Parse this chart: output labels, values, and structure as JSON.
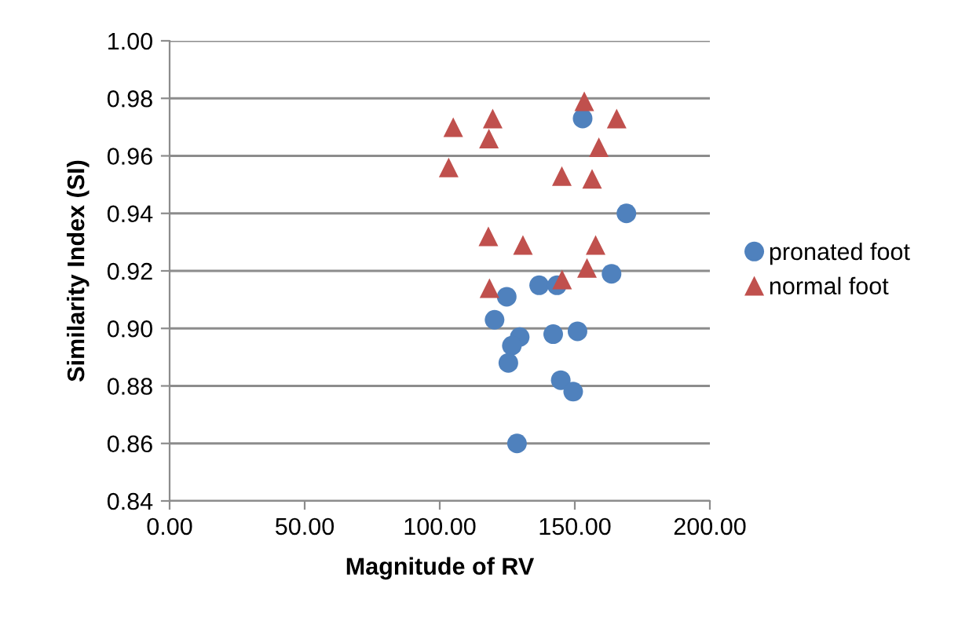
{
  "chart_data": {
    "type": "scatter",
    "xlabel": "Magnitude of RV",
    "ylabel": "Similarity Index (SI)",
    "xlim": [
      0,
      200
    ],
    "xticks": [
      {
        "value": 0,
        "label": "0.00"
      },
      {
        "value": 50,
        "label": "50.00"
      },
      {
        "value": 100,
        "label": "100.00"
      },
      {
        "value": 150,
        "label": "150.00"
      },
      {
        "value": 200,
        "label": "200.00"
      }
    ],
    "ylim": [
      0.84,
      1.0
    ],
    "yticks": [
      0.84,
      0.86,
      0.88,
      {
        "value": 0.9,
        "label": "0.90"
      },
      0.92,
      0.94,
      0.96,
      0.98,
      {
        "value": 1.0,
        "label": "1.00"
      }
    ],
    "grid": "y",
    "legend": "right",
    "series": [
      {
        "name": "pronated foot",
        "color": "#4f81bd",
        "marker": "circle",
        "x": [
          152.9,
          169.1,
          163.6,
          136.8,
          143.4,
          124.8,
          120.3,
          129.6,
          126.7,
          125.4,
          142.0,
          151.0,
          144.8,
          149.4,
          128.6
        ],
        "values": [
          0.973,
          0.94,
          0.919,
          0.915,
          0.915,
          0.911,
          0.903,
          0.897,
          0.894,
          0.888,
          0.898,
          0.899,
          0.882,
          0.878,
          0.86
        ]
      },
      {
        "name": "normal foot",
        "color": "#c0504d",
        "marker": "triangle",
        "x": [
          153.5,
          165.5,
          119.6,
          105.0,
          118.2,
          158.9,
          103.3,
          145.2,
          156.4,
          118.0,
          130.8,
          157.7,
          154.5,
          145.3,
          118.4
        ],
        "values": [
          0.979,
          0.973,
          0.973,
          0.97,
          0.966,
          0.963,
          0.956,
          0.953,
          0.952,
          0.932,
          0.929,
          0.929,
          0.921,
          0.917,
          0.914
        ]
      }
    ]
  }
}
